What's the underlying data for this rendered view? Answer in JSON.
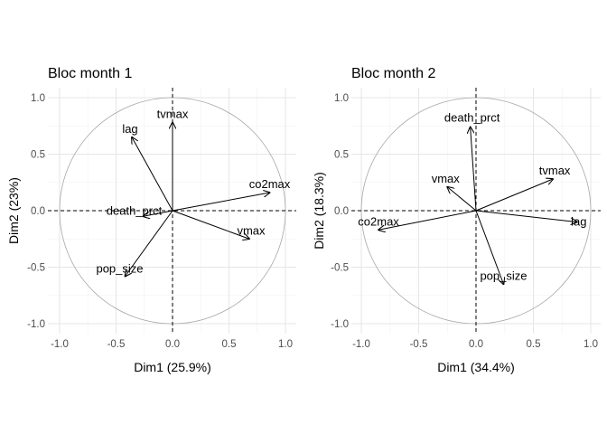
{
  "chart_data": [
    {
      "type": "scatter",
      "subtype": "pca-variable-correlation-circle",
      "title": "Bloc month 1",
      "xlabel": "Dim1 (25.9%)",
      "ylabel": "Dim2 (23%)",
      "xlim": [
        -1.0,
        1.0
      ],
      "ylim": [
        -1.0,
        1.0
      ],
      "xticks": [
        "-1.0",
        "-0.5",
        "0.0",
        "0.5",
        "1.0"
      ],
      "yticks": [
        "-1.0",
        "-0.5",
        "0.0",
        "0.5",
        "1.0"
      ],
      "grid": true,
      "variables": [
        {
          "name": "tvmax",
          "x": 0.0,
          "y": 0.78
        },
        {
          "name": "lag",
          "x": -0.36,
          "y": 0.65
        },
        {
          "name": "co2max",
          "x": 0.86,
          "y": 0.16
        },
        {
          "name": "death_prct",
          "x": -0.26,
          "y": -0.05
        },
        {
          "name": "vmax",
          "x": 0.68,
          "y": -0.25
        },
        {
          "name": "pop_size",
          "x": -0.42,
          "y": -0.58
        }
      ]
    },
    {
      "type": "scatter",
      "subtype": "pca-variable-correlation-circle",
      "title": "Bloc month 2",
      "xlabel": "Dim1 (34.4%)",
      "ylabel": "Dim2 (18.3%)",
      "xlim": [
        -1.0,
        1.0
      ],
      "ylim": [
        -1.0,
        1.0
      ],
      "xticks": [
        "-1.0",
        "-0.5",
        "0.0",
        "0.5",
        "1.0"
      ],
      "yticks": [
        "-1.0",
        "-0.5",
        "0.0",
        "0.5",
        "1.0"
      ],
      "grid": true,
      "variables": [
        {
          "name": "death_prct",
          "x": -0.05,
          "y": 0.74
        },
        {
          "name": "tvmax",
          "x": 0.67,
          "y": 0.28
        },
        {
          "name": "vmax",
          "x": -0.25,
          "y": 0.21
        },
        {
          "name": "lag",
          "x": 0.88,
          "y": -0.1
        },
        {
          "name": "co2max",
          "x": -0.85,
          "y": -0.17
        },
        {
          "name": "pop_size",
          "x": 0.24,
          "y": -0.65
        }
      ]
    }
  ]
}
